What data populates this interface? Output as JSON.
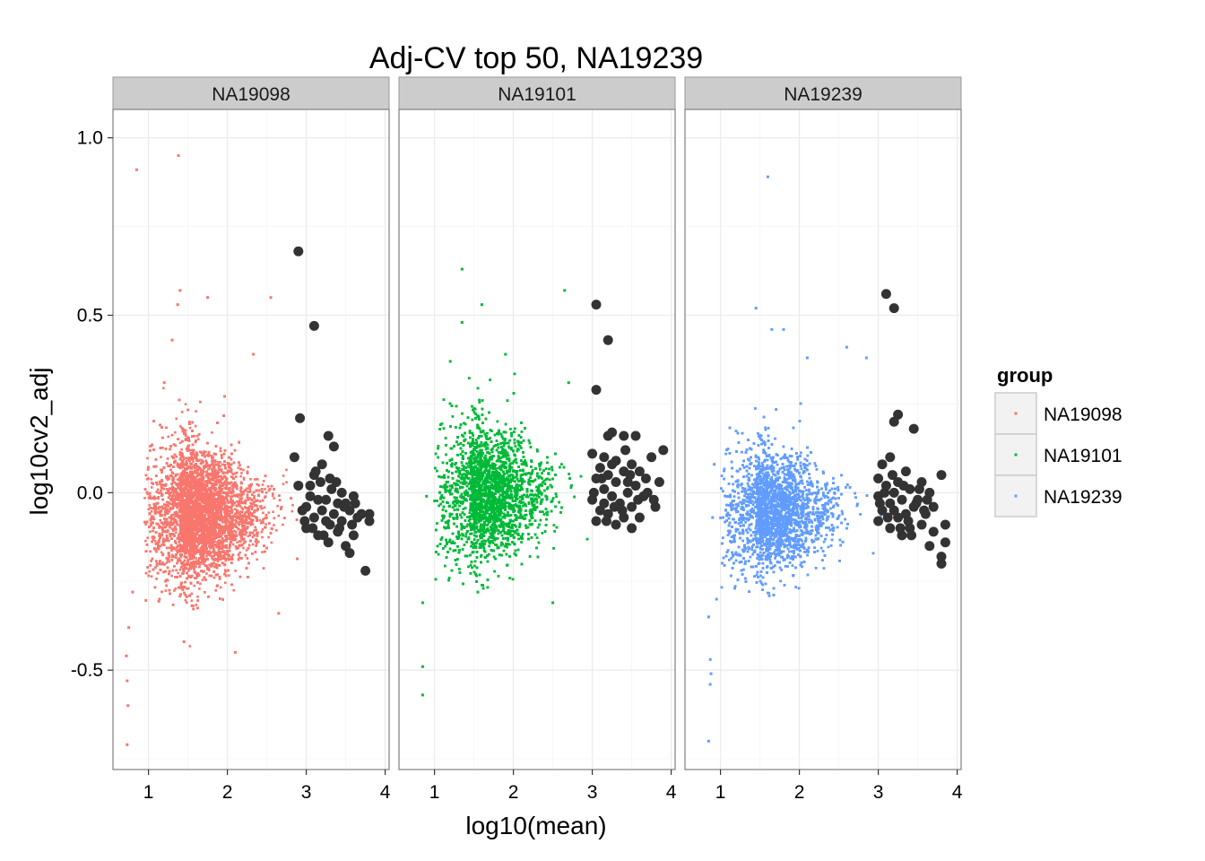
{
  "chart_data": {
    "type": "scatter",
    "title": "Adj-CV top 50, NA19239",
    "xlabel": "log10(mean)",
    "ylabel": "log10cv2_adj",
    "xlim": [
      0.55,
      4.05
    ],
    "ylim": [
      -0.78,
      1.08
    ],
    "x_ticks": [
      1,
      2,
      3,
      4
    ],
    "y_ticks": [
      1.0,
      0.5,
      0.0,
      -0.5
    ],
    "x_tick_labels": [
      "1",
      "2",
      "3",
      "4"
    ],
    "y_tick_labels": [
      "1.0",
      "0.5",
      "0.0",
      "-0.5"
    ],
    "grid": true,
    "legend": {
      "title": "group",
      "position": "right",
      "entries": [
        {
          "label": "NA19098",
          "color": "#f8766d"
        },
        {
          "label": "NA19101",
          "color": "#00ba38"
        },
        {
          "label": "NA19239",
          "color": "#619cff"
        }
      ]
    },
    "highlight_color": "#333333",
    "highlight_label": "top 50 (large dark points)",
    "panels": [
      {
        "name": "NA19098",
        "color": "#f8766d",
        "cloud": {
          "x_range": [
            0.95,
            2.9
          ],
          "center_x": 1.4,
          "center_y": -0.06,
          "core_sd_y": 0.09,
          "n_points": 9000
        },
        "outliers": [
          [
            0.85,
            0.91
          ],
          [
            1.38,
            0.95
          ],
          [
            1.4,
            0.57
          ],
          [
            1.37,
            0.53
          ],
          [
            1.75,
            0.55
          ],
          [
            2.55,
            0.55
          ],
          [
            1.3,
            0.43
          ],
          [
            2.33,
            0.39
          ],
          [
            1.2,
            0.31
          ],
          [
            2.65,
            -0.34
          ],
          [
            2.1,
            -0.45
          ],
          [
            0.8,
            -0.28
          ],
          [
            0.75,
            -0.38
          ],
          [
            0.72,
            -0.46
          ],
          [
            0.73,
            -0.53
          ],
          [
            0.74,
            -0.6
          ],
          [
            0.73,
            -0.71
          ],
          [
            1.45,
            -0.42
          ]
        ],
        "top50": [
          [
            2.9,
            0.68
          ],
          [
            3.1,
            0.47
          ],
          [
            2.92,
            0.21
          ],
          [
            3.28,
            0.16
          ],
          [
            3.35,
            0.13
          ],
          [
            2.85,
            0.1
          ],
          [
            3.2,
            0.08
          ],
          [
            3.1,
            0.05
          ],
          [
            3.3,
            0.04
          ],
          [
            3.05,
            0.02
          ],
          [
            3.45,
            0.0
          ],
          [
            3.6,
            -0.01
          ],
          [
            3.15,
            -0.02
          ],
          [
            3.25,
            -0.02
          ],
          [
            3.4,
            -0.03
          ],
          [
            3.5,
            -0.03
          ],
          [
            3.0,
            -0.04
          ],
          [
            3.55,
            -0.05
          ],
          [
            3.2,
            -0.05
          ],
          [
            3.35,
            -0.06
          ],
          [
            3.8,
            -0.06
          ],
          [
            3.65,
            -0.07
          ],
          [
            3.1,
            -0.07
          ],
          [
            3.45,
            -0.08
          ],
          [
            3.8,
            -0.08
          ],
          [
            3.3,
            -0.09
          ],
          [
            3.0,
            -0.1
          ],
          [
            3.4,
            -0.11
          ],
          [
            3.6,
            -0.12
          ],
          [
            3.5,
            -0.15
          ],
          [
            3.55,
            -0.17
          ],
          [
            3.75,
            -0.22
          ],
          [
            3.15,
            -0.12
          ],
          [
            3.25,
            -0.08
          ],
          [
            2.95,
            -0.05
          ],
          [
            3.05,
            -0.01
          ],
          [
            3.38,
            0.03
          ],
          [
            3.12,
            0.06
          ],
          [
            2.98,
            -0.08
          ],
          [
            3.42,
            -0.1
          ],
          [
            3.22,
            -0.12
          ],
          [
            3.48,
            -0.04
          ],
          [
            3.32,
            0.01
          ],
          [
            3.62,
            -0.03
          ],
          [
            3.18,
            0.03
          ],
          [
            2.9,
            0.02
          ],
          [
            3.58,
            -0.09
          ],
          [
            3.28,
            -0.14
          ],
          [
            3.08,
            -0.1
          ],
          [
            3.7,
            -0.06
          ]
        ]
      },
      {
        "name": "NA19101",
        "color": "#00ba38",
        "cloud": {
          "x_range": [
            1.0,
            3.0
          ],
          "center_x": 1.45,
          "center_y": 0.0,
          "core_sd_y": 0.09,
          "n_points": 9000
        },
        "outliers": [
          [
            1.35,
            0.63
          ],
          [
            2.65,
            0.57
          ],
          [
            1.6,
            0.53
          ],
          [
            1.35,
            0.48
          ],
          [
            1.2,
            0.37
          ],
          [
            1.9,
            0.39
          ],
          [
            2.7,
            0.31
          ],
          [
            0.9,
            -0.01
          ],
          [
            0.85,
            -0.31
          ],
          [
            0.85,
            -0.49
          ],
          [
            0.85,
            -0.57
          ],
          [
            2.5,
            -0.31
          ],
          [
            1.55,
            -0.28
          ]
        ],
        "top50": [
          [
            3.05,
            0.53
          ],
          [
            3.2,
            0.43
          ],
          [
            3.05,
            0.29
          ],
          [
            3.25,
            0.17
          ],
          [
            3.2,
            0.16
          ],
          [
            3.4,
            0.16
          ],
          [
            3.55,
            0.16
          ],
          [
            3.9,
            0.12
          ],
          [
            3.0,
            0.11
          ],
          [
            3.15,
            0.1
          ],
          [
            3.3,
            0.09
          ],
          [
            3.5,
            0.08
          ],
          [
            3.75,
            0.1
          ],
          [
            3.1,
            0.07
          ],
          [
            3.4,
            0.06
          ],
          [
            3.6,
            0.06
          ],
          [
            3.2,
            0.05
          ],
          [
            3.05,
            0.04
          ],
          [
            3.3,
            0.03
          ],
          [
            3.55,
            0.02
          ],
          [
            3.85,
            0.03
          ],
          [
            3.15,
            0.01
          ],
          [
            3.45,
            0.0
          ],
          [
            3.25,
            -0.01
          ],
          [
            3.65,
            -0.01
          ],
          [
            3.0,
            -0.02
          ],
          [
            3.35,
            -0.03
          ],
          [
            3.5,
            -0.04
          ],
          [
            3.8,
            -0.04
          ],
          [
            3.1,
            -0.05
          ],
          [
            3.2,
            -0.06
          ],
          [
            3.4,
            -0.07
          ],
          [
            3.6,
            -0.07
          ],
          [
            3.3,
            -0.09
          ],
          [
            3.05,
            -0.08
          ],
          [
            3.5,
            -0.1
          ],
          [
            3.15,
            -0.03
          ],
          [
            3.45,
            0.03
          ],
          [
            3.7,
            0.0
          ],
          [
            3.25,
            0.08
          ],
          [
            3.38,
            -0.05
          ],
          [
            3.02,
            0.0
          ],
          [
            3.58,
            -0.02
          ],
          [
            3.12,
            0.04
          ],
          [
            3.28,
            -0.04
          ],
          [
            3.48,
            0.05
          ],
          [
            3.68,
            0.04
          ],
          [
            3.18,
            -0.08
          ],
          [
            3.42,
            0.12
          ],
          [
            3.78,
            -0.02
          ]
        ]
      },
      {
        "name": "NA19239",
        "color": "#619cff",
        "cloud": {
          "x_range": [
            1.0,
            3.05
          ],
          "center_x": 1.45,
          "center_y": -0.05,
          "core_sd_y": 0.08,
          "n_points": 9000
        },
        "outliers": [
          [
            1.6,
            0.89
          ],
          [
            1.45,
            0.52
          ],
          [
            1.8,
            0.46
          ],
          [
            1.65,
            0.46
          ],
          [
            2.6,
            0.41
          ],
          [
            2.1,
            0.38
          ],
          [
            2.85,
            0.38
          ],
          [
            0.95,
            -0.3
          ],
          [
            0.85,
            -0.35
          ],
          [
            0.87,
            -0.47
          ],
          [
            0.88,
            -0.51
          ],
          [
            0.87,
            -0.54
          ],
          [
            0.85,
            -0.7
          ],
          [
            0.9,
            -0.07
          ],
          [
            0.92,
            0.08
          ]
        ],
        "top50": [
          [
            3.1,
            0.56
          ],
          [
            3.2,
            0.52
          ],
          [
            3.25,
            0.22
          ],
          [
            3.2,
            0.2
          ],
          [
            3.45,
            0.18
          ],
          [
            3.15,
            0.1
          ],
          [
            3.05,
            0.08
          ],
          [
            3.35,
            0.06
          ],
          [
            3.8,
            0.05
          ],
          [
            3.0,
            0.04
          ],
          [
            3.25,
            0.03
          ],
          [
            3.55,
            0.03
          ],
          [
            3.1,
            0.02
          ],
          [
            3.4,
            0.01
          ],
          [
            3.2,
            0.0
          ],
          [
            3.65,
            0.0
          ],
          [
            3.0,
            -0.01
          ],
          [
            3.3,
            -0.02
          ],
          [
            3.5,
            -0.02
          ],
          [
            3.15,
            -0.03
          ],
          [
            3.45,
            -0.04
          ],
          [
            3.7,
            -0.04
          ],
          [
            3.05,
            -0.05
          ],
          [
            3.35,
            -0.06
          ],
          [
            3.6,
            -0.06
          ],
          [
            3.25,
            -0.07
          ],
          [
            3.0,
            -0.08
          ],
          [
            3.55,
            -0.09
          ],
          [
            3.85,
            -0.09
          ],
          [
            3.15,
            -0.1
          ],
          [
            3.4,
            -0.1
          ],
          [
            3.7,
            -0.11
          ],
          [
            3.3,
            -0.12
          ],
          [
            3.85,
            -0.14
          ],
          [
            3.8,
            -0.18
          ],
          [
            3.8,
            -0.2
          ],
          [
            3.65,
            -0.15
          ],
          [
            3.2,
            -0.05
          ],
          [
            3.48,
            -0.03
          ],
          [
            3.08,
            0.0
          ],
          [
            3.38,
            -0.08
          ],
          [
            3.62,
            -0.02
          ],
          [
            3.18,
            0.05
          ],
          [
            3.28,
            -0.1
          ],
          [
            3.52,
            0.01
          ],
          [
            3.02,
            -0.03
          ],
          [
            3.42,
            -0.12
          ],
          [
            3.12,
            -0.07
          ],
          [
            3.58,
            -0.05
          ],
          [
            3.32,
            0.02
          ]
        ]
      }
    ]
  }
}
